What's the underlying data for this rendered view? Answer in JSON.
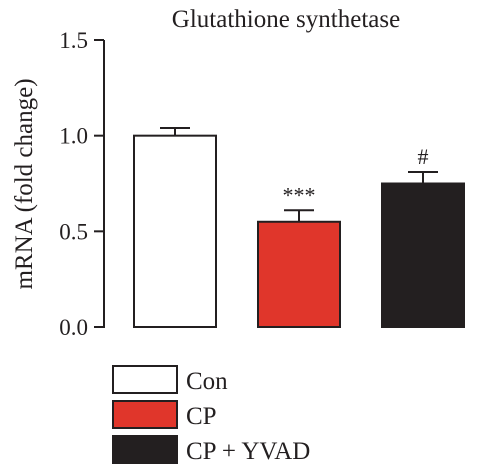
{
  "chart_data": {
    "type": "bar",
    "title": "Glutathione synthetase",
    "xlabel": "",
    "ylabel": "mRNA (fold change)",
    "ylim": [
      0,
      1.5
    ],
    "yticks": [
      "0.0",
      "0.5",
      "1.0",
      "1.5"
    ],
    "categories": [
      "Con",
      "CP",
      "CP + YVAD"
    ],
    "values": [
      1.0,
      0.55,
      0.75
    ],
    "errors": [
      0.04,
      0.06,
      0.06
    ],
    "significance": [
      "",
      "***",
      "#"
    ],
    "colors": [
      "#ffffff",
      "#e0362b",
      "#231f20"
    ],
    "grid": false,
    "legend": {
      "placement": "bottom-left",
      "entries": [
        "Con",
        "CP",
        "CP + YVAD"
      ]
    }
  }
}
